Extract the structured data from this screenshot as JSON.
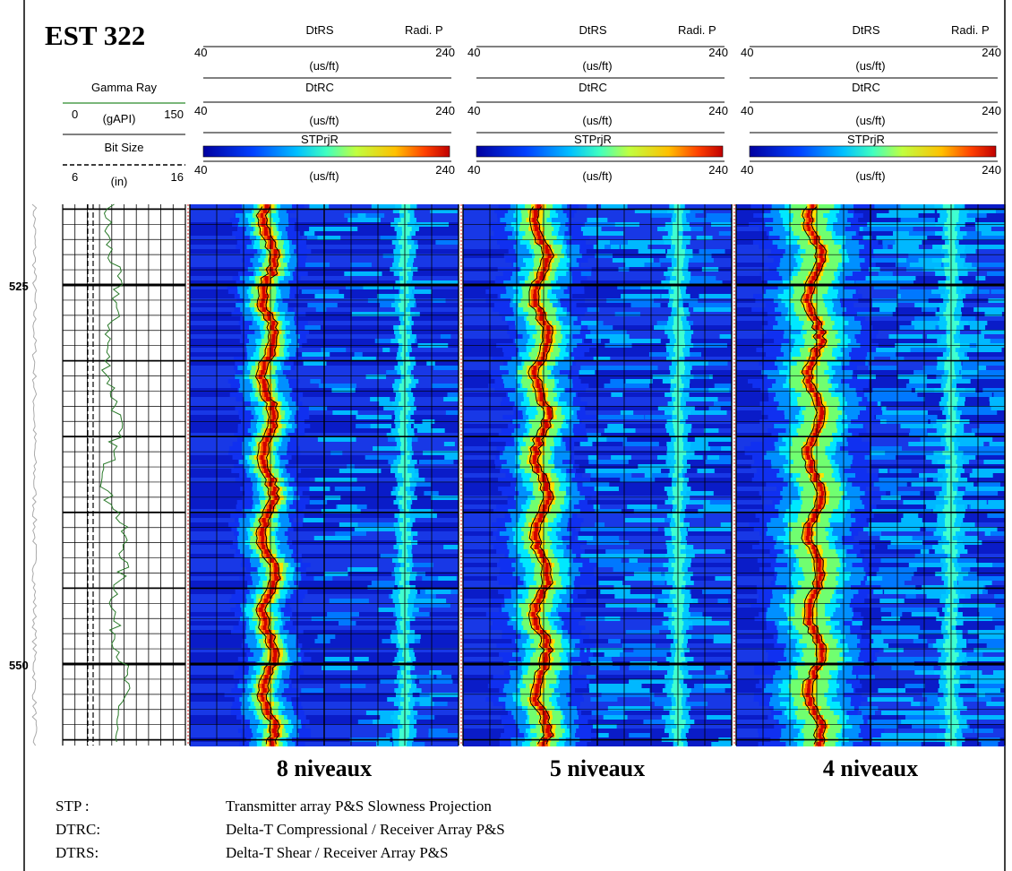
{
  "header": {
    "title": "EST 322",
    "gamma_ray": {
      "name": "Gamma Ray",
      "min": 0,
      "unit": "(gAPI)",
      "max": 150
    },
    "bit_size": {
      "name": "Bit Size",
      "min": 6,
      "unit": "(in)",
      "max": 16
    }
  },
  "panels": [
    {
      "curves": [
        {
          "name": "DtRS",
          "extra": "Radi. P",
          "min": 40,
          "unit": "(us/ft)",
          "max": 240
        },
        {
          "name": "DtRC",
          "min": 40,
          "unit": "(us/ft)",
          "max": 240
        },
        {
          "name": "STPrjR",
          "min": 40,
          "unit": "(us/ft)",
          "max": 240
        }
      ],
      "caption": "8 niveaux"
    },
    {
      "curves": [
        {
          "name": "DtRS",
          "extra": "Radi. P",
          "min": 40,
          "unit": "(us/ft)",
          "max": 240
        },
        {
          "name": "DtRC",
          "min": 40,
          "unit": "(us/ft)",
          "max": 240
        },
        {
          "name": "STPrjR",
          "min": 40,
          "unit": "(us/ft)",
          "max": 240
        }
      ],
      "caption": "5 niveaux"
    },
    {
      "curves": [
        {
          "name": "DtRS",
          "extra": "Radi. P",
          "min": 40,
          "unit": "(us/ft)",
          "max": 240
        },
        {
          "name": "DtRC",
          "min": 40,
          "unit": "(us/ft)",
          "max": 240
        },
        {
          "name": "STPrjR",
          "min": 40,
          "unit": "(us/ft)",
          "max": 240
        }
      ],
      "caption": "4 niveaux"
    }
  ],
  "depth_labels": [
    525,
    550
  ],
  "legend": [
    {
      "term": "STP :",
      "definition": "Transmitter array P&S Slowness Projection"
    },
    {
      "term": "DTRC:",
      "definition": "Delta-T Compressional / Receiver Array P&S"
    },
    {
      "term": "DTRS:",
      "definition": "Delta-T Shear / Receiver Array P&S"
    }
  ]
}
